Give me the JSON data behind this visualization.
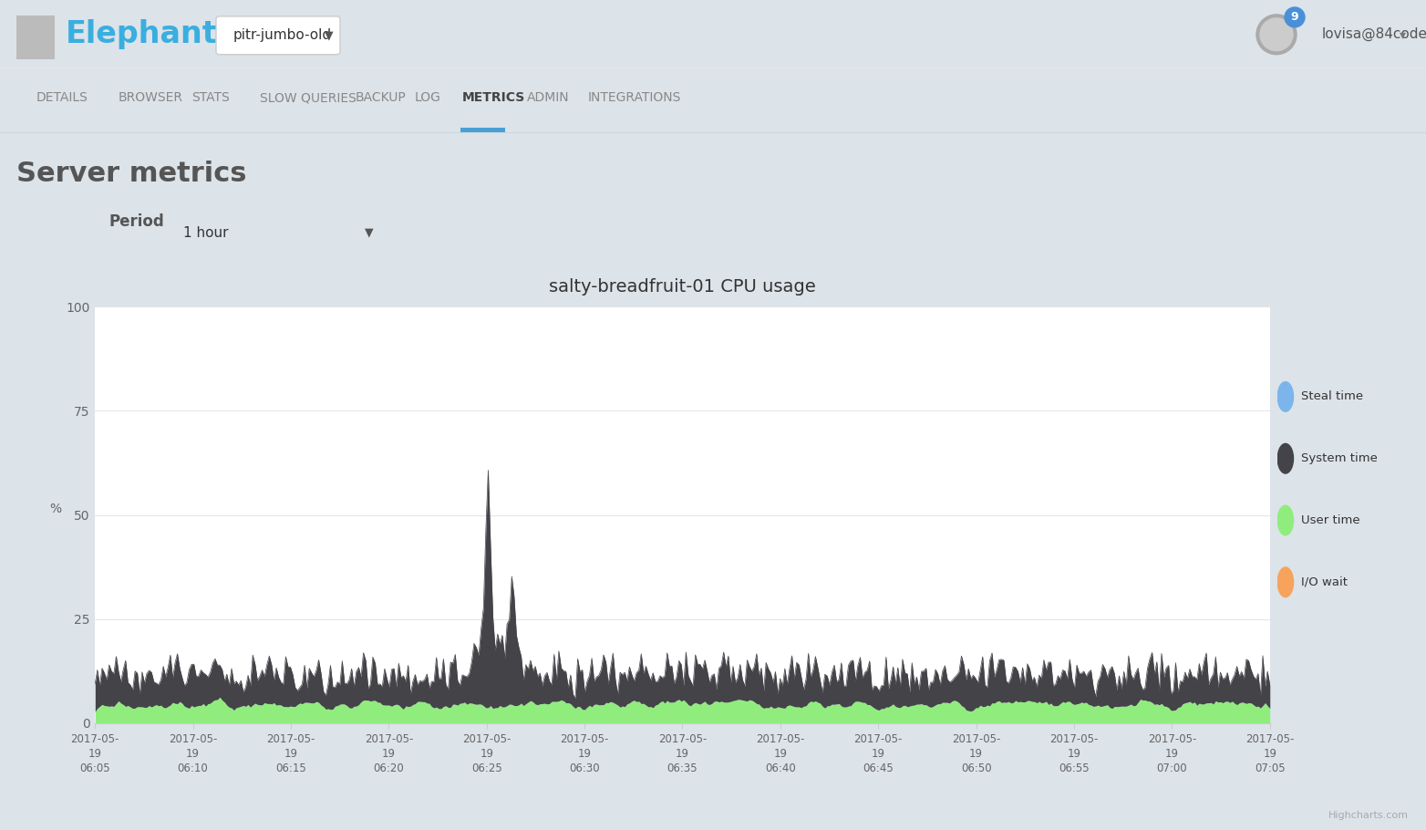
{
  "title": "salty-breadfruit-01 CPU usage",
  "page_title": "Server metrics",
  "nav_items": [
    "DETAILS",
    "BROWSER",
    "STATS",
    "SLOW QUERIES",
    "BACKUP",
    "LOG",
    "METRICS",
    "ADMIN",
    "INTEGRATIONS"
  ],
  "active_nav": "METRICS",
  "period_label": "Period",
  "period_value": "1 hour",
  "ylabel": "%",
  "ylim": [
    0,
    100
  ],
  "yticks": [
    0,
    25,
    50,
    75,
    100
  ],
  "xtick_labels": [
    "2017-05-\n19\n06:05",
    "2017-05-\n19\n06:10",
    "2017-05-\n19\n06:15",
    "2017-05-\n19\n06:20",
    "2017-05-\n19\n06:25",
    "2017-05-\n19\n06:30",
    "2017-05-\n19\n06:35",
    "2017-05-\n19\n06:40",
    "2017-05-\n19\n06:45",
    "2017-05-\n19\n06:50",
    "2017-05-\n19\n06:55",
    "2017-05-\n19\n07:00",
    "2017-05-\n19\n07:05"
  ],
  "legend_items": [
    {
      "label": "Steal time",
      "color": "#7cb5ec"
    },
    {
      "label": "System time",
      "color": "#434348"
    },
    {
      "label": "User time",
      "color": "#90ed7d"
    },
    {
      "label": "I/O wait",
      "color": "#f7a35c"
    }
  ],
  "page_bg_color": "#dce3e9",
  "panel_bg_color": "#ffffff",
  "header_bg": "#ffffff",
  "nav_bg": "#ffffff",
  "grid_color": "#e6e6e6",
  "axis_color": "#666666",
  "system_color": "#434348",
  "user_color": "#90ed7d",
  "steal_color": "#7cb5ec",
  "iowait_color": "#f7a35c",
  "elephantsql_color": "#3aaedf",
  "active_nav_color": "#444444",
  "inactive_nav_color": "#888888",
  "active_underline_color": "#4a9fd4",
  "highcharts_text": "Highcharts.com",
  "header_border_color": "#e8e8e8",
  "nav_border_color": "#c8d8e4"
}
